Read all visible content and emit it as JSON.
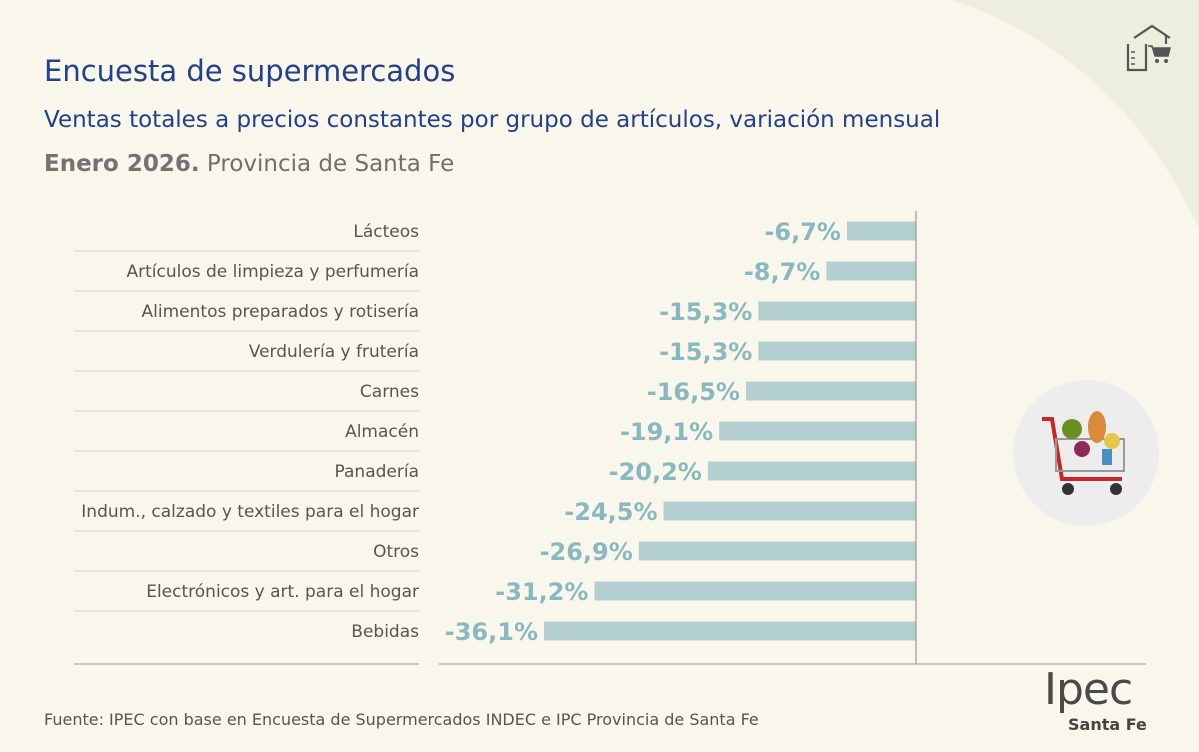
{
  "header": {
    "title": "Encuesta de supermercados",
    "subtitle": "Ventas totales a precios constantes por grupo de artículos, variación mensual",
    "period_bold": "Enero 2026.",
    "period_rest": " Provincia de Santa Fe"
  },
  "footer": {
    "source": "Fuente: IPEC con base en Encuesta de Supermercados INDEC e IPC Provincia de Santa Fe",
    "logo_word": "Ipec",
    "logo_sub": "Santa Fe"
  },
  "colors": {
    "background": "#f9f7ec",
    "bar": "#b3cfcf",
    "value_label": "#89b8c0",
    "title": "#22418a"
  },
  "icons": {
    "top_right": "house-cart-icon",
    "middle_right": "shopping-cart-icon"
  },
  "chart_data": {
    "type": "bar",
    "orientation": "horizontal",
    "categories": [
      "Lácteos",
      "Artículos de limpieza y perfumería",
      "Alimentos preparados y rotisería",
      "Verdulería y frutería",
      "Carnes",
      "Almacén",
      "Panadería",
      "Indum., calzado y textiles para el hogar",
      "Otros",
      "Electrónicos y art. para el hogar",
      "Bebidas"
    ],
    "values": [
      -6.7,
      -8.7,
      -15.3,
      -15.3,
      -16.5,
      -19.1,
      -20.2,
      -24.5,
      -26.9,
      -31.2,
      -36.1
    ],
    "value_labels": [
      "-6,7%",
      "-8,7%",
      "-15,3%",
      "-15,3%",
      "-16,5%",
      "-19,1%",
      "-20,2%",
      "-24,5%",
      "-26,9%",
      "-31,2%",
      "-36,1%"
    ],
    "xlim": [
      -36.1,
      0
    ],
    "grid": false
  }
}
